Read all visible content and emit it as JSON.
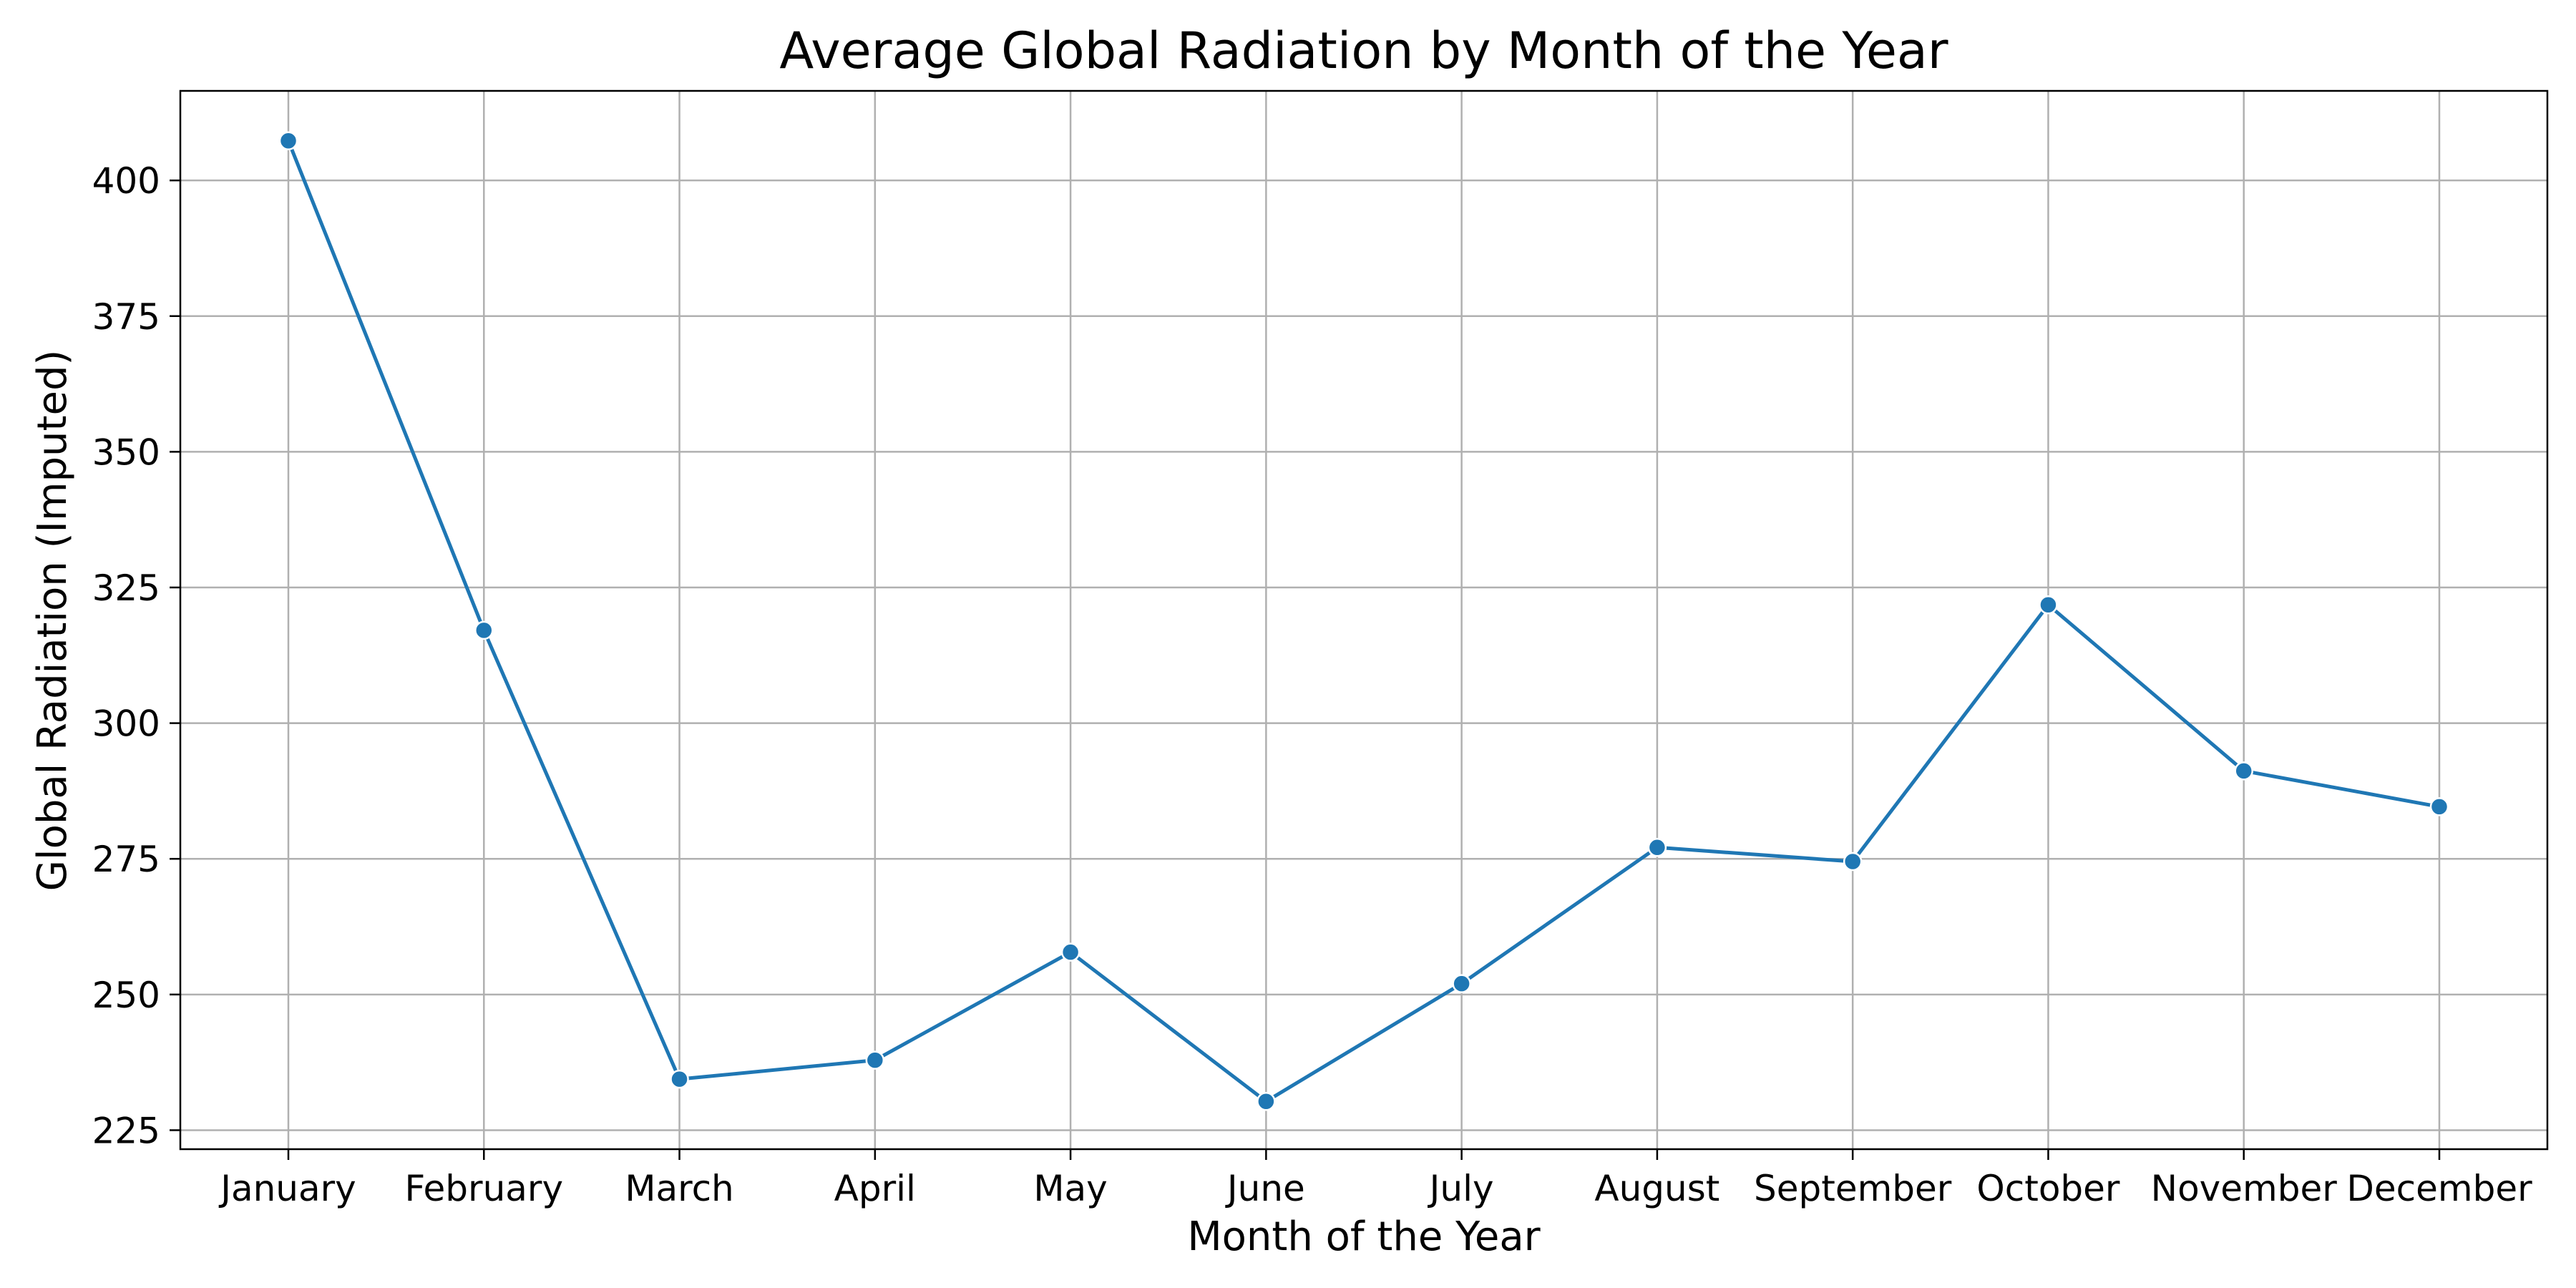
{
  "chart_data": {
    "type": "line",
    "title": "Average Global Radiation by Month of the Year",
    "xlabel": "Month of the Year",
    "ylabel": "Global Radiation (Imputed)",
    "categories": [
      "January",
      "February",
      "March",
      "April",
      "May",
      "June",
      "July",
      "August",
      "September",
      "October",
      "November",
      "December"
    ],
    "series": [
      {
        "values": [
          407.3,
          317.1,
          234.4,
          237.9,
          257.8,
          230.3,
          252.0,
          277.1,
          274.5,
          321.8,
          291.2,
          284.6
        ]
      }
    ],
    "yticks": [
      225,
      250,
      275,
      300,
      325,
      350,
      375,
      400
    ],
    "ylim": [
      221.5,
      416.5
    ],
    "grid": true,
    "line_color": "#1f77b4",
    "marker": "circle"
  }
}
